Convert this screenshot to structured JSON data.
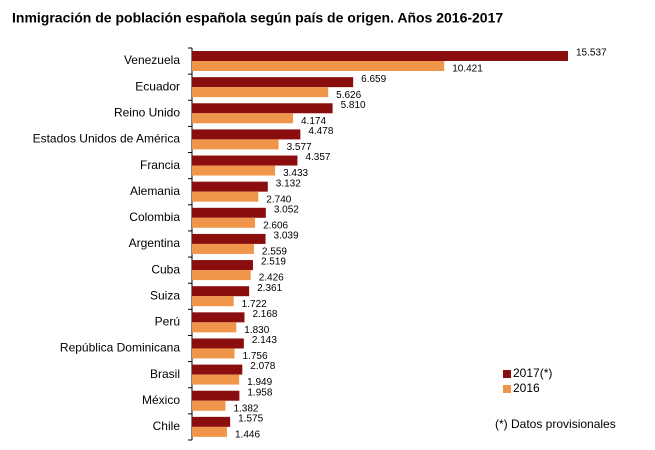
{
  "chart_data": {
    "type": "bar",
    "orientation": "horizontal",
    "title": "Inmigración de población española según país de origen. Años 2016-2017",
    "categories": [
      "Venezuela",
      "Ecuador",
      "Reino Unido",
      "Estados Unidos de América",
      "Francia",
      "Alemania",
      "Colombia",
      "Argentina",
      "Cuba",
      "Suiza",
      "Perú",
      "República Dominicana",
      "Brasil",
      "México",
      "Chile"
    ],
    "series": [
      {
        "name": "2017(*)",
        "color": "#8b0e0e",
        "values": [
          15537,
          6659,
          5810,
          4478,
          4357,
          3132,
          3052,
          3039,
          2519,
          2361,
          2168,
          2143,
          2078,
          1958,
          1575
        ],
        "value_labels": [
          "15.537",
          "6.659",
          "5.810",
          "4.478",
          "4.357",
          "3.132",
          "3.052",
          "3.039",
          "2.519",
          "2.361",
          "2.168",
          "2.143",
          "2.078",
          "1.958",
          "1.575"
        ]
      },
      {
        "name": "2016",
        "color": "#f0964a",
        "values": [
          10421,
          5626,
          4174,
          3577,
          3433,
          2740,
          2606,
          2559,
          2426,
          1722,
          1830,
          1756,
          1949,
          1382,
          1446
        ],
        "value_labels": [
          "10.421",
          "5.626",
          "4.174",
          "3.577",
          "3.433",
          "2.740",
          "2.606",
          "2.559",
          "2.426",
          "1.722",
          "1.830",
          "1.756",
          "1.949",
          "1.382",
          "1.446"
        ]
      }
    ],
    "legend": "lower right",
    "note": "(*) Datos provisionales"
  }
}
